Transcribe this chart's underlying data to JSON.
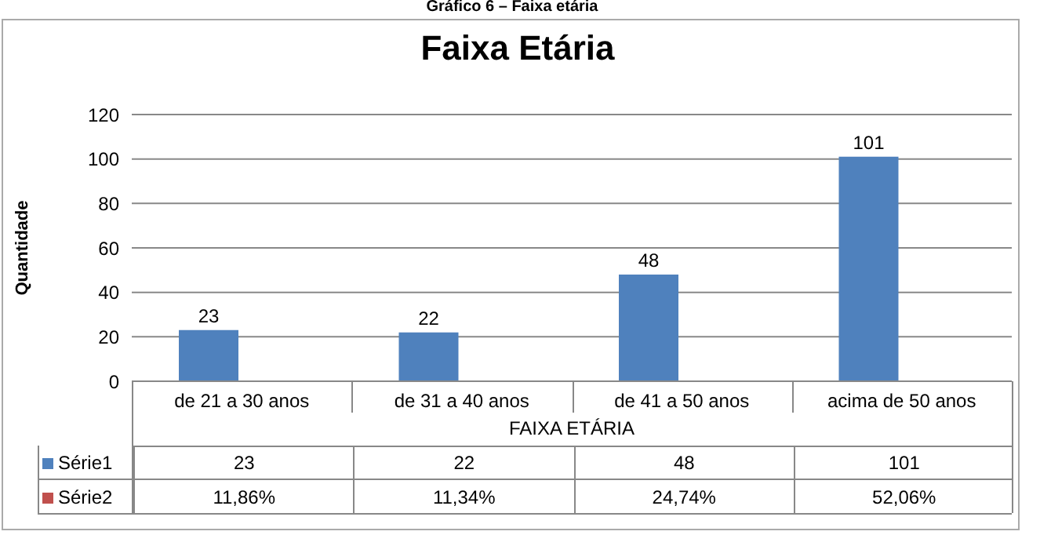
{
  "chart_data": {
    "type": "bar",
    "title": "Faixa Etária",
    "annotations": [
      "Gráfico 6 – Faixa etária"
    ],
    "xlabel": "FAIXA ETÁRIA",
    "ylabel": "Quantidade",
    "categories": [
      "de 21 a 30 anos",
      "de 31 a 40 anos",
      "de 41 a 50 anos",
      "acima de 50 anos"
    ],
    "series": [
      {
        "name": "Série1",
        "color": "#4f81bd",
        "values": [
          23,
          22,
          48,
          101
        ],
        "value_labels": [
          "23",
          "22",
          "48",
          "101"
        ]
      },
      {
        "name": "Série2",
        "color": "#c0504d",
        "values": [
          null,
          null,
          null,
          null
        ],
        "value_labels": [
          "11,86%",
          "11,34%",
          "24,74%",
          "52,06%"
        ]
      }
    ],
    "ylim": [
      0,
      120
    ],
    "yticks": [
      0,
      20,
      40,
      60,
      80,
      100,
      120
    ],
    "grid": "y",
    "legend": "bottom"
  }
}
